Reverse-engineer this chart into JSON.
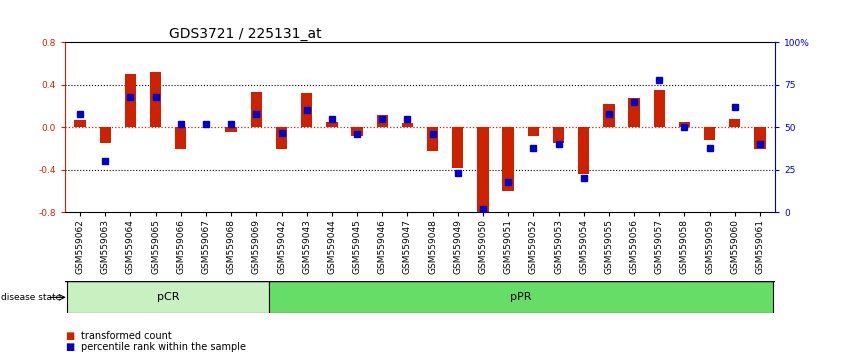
{
  "title": "GDS3721 / 225131_at",
  "samples": [
    "GSM559062",
    "GSM559063",
    "GSM559064",
    "GSM559065",
    "GSM559066",
    "GSM559067",
    "GSM559068",
    "GSM559069",
    "GSM559042",
    "GSM559043",
    "GSM559044",
    "GSM559045",
    "GSM559046",
    "GSM559047",
    "GSM559048",
    "GSM559049",
    "GSM559050",
    "GSM559051",
    "GSM559052",
    "GSM559053",
    "GSM559054",
    "GSM559055",
    "GSM559056",
    "GSM559057",
    "GSM559058",
    "GSM559059",
    "GSM559060",
    "GSM559061"
  ],
  "transformed_count": [
    0.07,
    -0.15,
    0.5,
    0.52,
    -0.2,
    0.0,
    -0.04,
    0.33,
    -0.2,
    0.32,
    0.05,
    -0.08,
    0.12,
    0.04,
    -0.22,
    -0.38,
    -0.8,
    -0.6,
    -0.08,
    -0.15,
    -0.44,
    0.22,
    0.28,
    0.35,
    0.05,
    -0.12,
    0.08,
    -0.2
  ],
  "percentile_rank": [
    58,
    30,
    68,
    68,
    52,
    52,
    52,
    58,
    47,
    60,
    55,
    46,
    55,
    55,
    46,
    23,
    2,
    18,
    38,
    40,
    20,
    58,
    65,
    78,
    50,
    38,
    62,
    40
  ],
  "group_labels": [
    "pCR",
    "pPR"
  ],
  "group_ranges": [
    [
      0,
      8
    ],
    [
      8,
      28
    ]
  ],
  "pcr_color": "#c8f0c0",
  "ppr_color": "#66DD66",
  "bar_color": "#CC2200",
  "dot_color": "#0000CC",
  "ylim": [
    -0.8,
    0.8
  ],
  "yticks": [
    -0.8,
    -0.4,
    0.0,
    0.4,
    0.8
  ],
  "right_yticks": [
    0,
    25,
    50,
    75,
    100
  ],
  "right_yticklabels": [
    "0",
    "25",
    "50",
    "75",
    "100%"
  ],
  "hline_color": "#CC2200",
  "grid_color": "black",
  "bg_color": "white",
  "title_fontsize": 10,
  "tick_fontsize": 6.5
}
